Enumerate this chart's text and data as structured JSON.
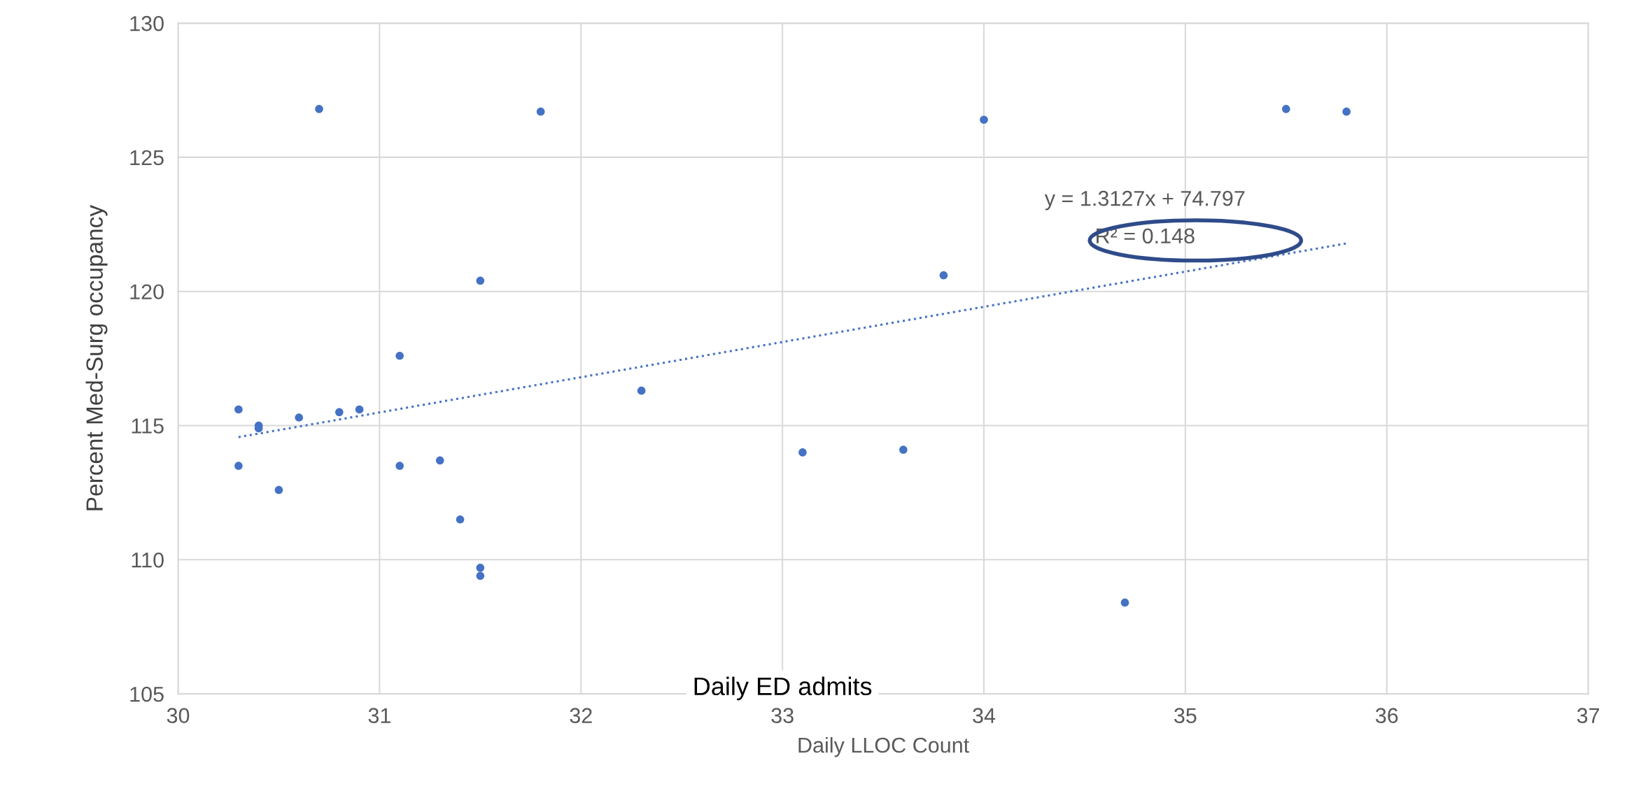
{
  "chart_data": {
    "type": "scatter",
    "xlabel": "Daily LLOC Count",
    "ylabel": "Percent Med-Surg occupancy",
    "xlim": [
      30,
      37
    ],
    "xticks": [
      30,
      31,
      32,
      33,
      34,
      35,
      36,
      37
    ],
    "ylim": [
      105,
      130
    ],
    "yticks": [
      105,
      110,
      115,
      120,
      125,
      130
    ],
    "grid": true,
    "series": [
      {
        "color": "#4472c4",
        "marker": "circle",
        "x": [
          30.3,
          30.3,
          30.4,
          30.4,
          30.5,
          30.6,
          30.7,
          30.8,
          30.9,
          31.1,
          31.1,
          31.3,
          31.4,
          31.5,
          31.5,
          31.5,
          31.8,
          32.3,
          33.1,
          33.6,
          33.8,
          34.0,
          34.7,
          35.5,
          35.8
        ],
        "values": [
          115.6,
          113.5,
          115.0,
          114.9,
          112.6,
          115.3,
          126.8,
          115.5,
          115.6,
          117.6,
          113.5,
          113.7,
          111.5,
          120.4,
          109.7,
          109.4,
          126.7,
          116.3,
          114.0,
          114.1,
          120.6,
          126.4,
          108.4,
          126.8,
          126.7
        ]
      },
      {
        "type": "line",
        "color": "#4472c4",
        "line_style": "dotted",
        "x": [
          30.3,
          35.8
        ],
        "values": [
          114.57,
          121.79
        ]
      }
    ],
    "annotations": [
      "y = 1.3127x + 74.797",
      "R² = 0.148",
      "Daily ED admits"
    ]
  }
}
